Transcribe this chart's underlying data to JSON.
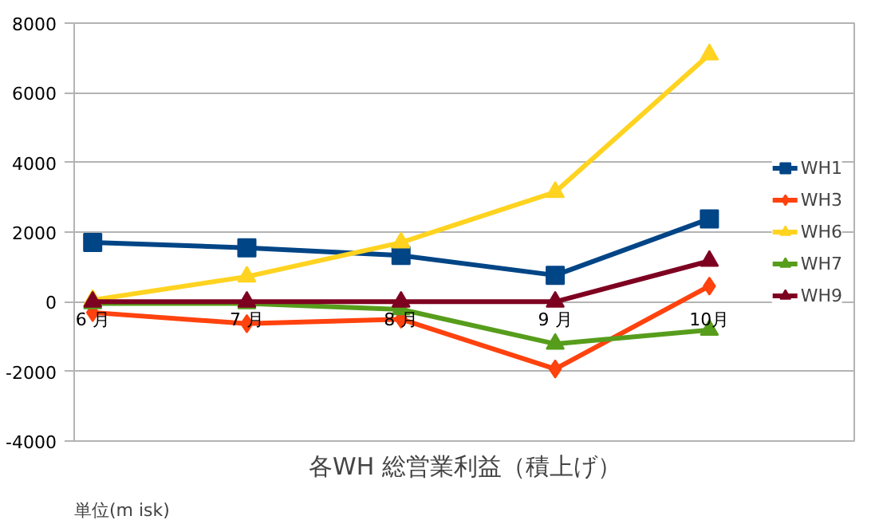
{
  "chart_data": {
    "type": "line",
    "title": "各WH 総営業利益（積上げ）",
    "annotations": [
      "単位(m isk)"
    ],
    "categories": [
      "6 月",
      "7 月",
      "8 月",
      "9 月",
      "10月"
    ],
    "ylim": [
      -4000,
      8000
    ],
    "yticks": [
      -4000,
      -2000,
      0,
      2000,
      4000,
      6000,
      8000
    ],
    "grid": "y",
    "legend": "right",
    "series": [
      {
        "name": "WH1",
        "color": "#004586",
        "marker": "square",
        "values": [
          1700,
          1550,
          1330,
          760,
          2380
        ]
      },
      {
        "name": "WH3",
        "color": "#ff420e",
        "marker": "diamond",
        "values": [
          -310,
          -630,
          -500,
          -1930,
          450
        ]
      },
      {
        "name": "WH6",
        "color": "#ffd320",
        "marker": "triangle",
        "values": [
          50,
          720,
          1700,
          3150,
          7100
        ]
      },
      {
        "name": "WH7",
        "color": "#579d1c",
        "marker": "triangle",
        "values": [
          -50,
          -50,
          -220,
          -1210,
          -810
        ]
      },
      {
        "name": "WH9",
        "color": "#7e0021",
        "marker": "triangle",
        "values": [
          0,
          0,
          0,
          0,
          1170
        ]
      }
    ]
  }
}
